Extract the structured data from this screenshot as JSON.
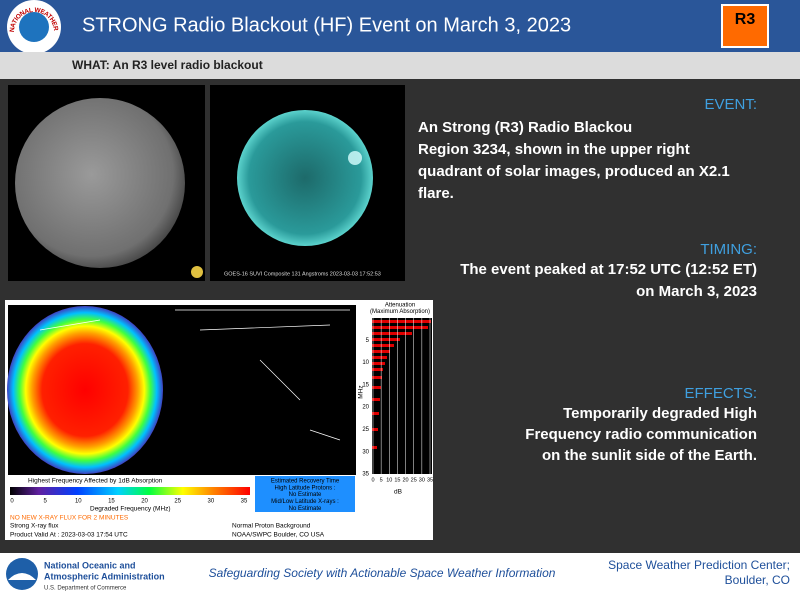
{
  "header": {
    "logo_text": "NATIONAL WEATHER SERVICE",
    "title": "STRONG Radio Blackout (HF) Event on March 3, 2023",
    "badge": "R3"
  },
  "what": "WHAT: An R3 level radio blackout",
  "images": {
    "suvi_caption": "GOES-16 SUVI Composite 131 Angstroms 2023-03-03 17:52:53"
  },
  "drap": {
    "legend_title": "Highest Frequency Affected by 1dB Absorption",
    "scale_ticks": [
      0,
      5,
      10,
      15,
      20,
      25,
      30,
      35
    ],
    "scale_label": "Degraded Frequency (MHz)",
    "recovery": [
      "Estimated Recovery Time",
      "High Latitude Protons :",
      "No Estimate",
      "Mid/Low Latitude X-rays :",
      "No Estimate"
    ],
    "warning": "NO NEW X-RAY FLUX FOR 2 MINUTES",
    "flux": "Strong X-ray flux",
    "valid": "Product Valid At : 2023-03-03 17:54 UTC",
    "proton": "Normal Proton Background",
    "source": "NOAA/SWPC Boulder, CO USA",
    "attenuation_title": [
      "Attenuation",
      "(Maximum Absorption)"
    ],
    "attenuation_y_label": "MHz",
    "attenuation_y_ticks": [
      5,
      10,
      15,
      20,
      25,
      30,
      35
    ],
    "attenuation_x_ticks": [
      0,
      5,
      10,
      15,
      20,
      25,
      30,
      35
    ],
    "attenuation_x_label": "dB"
  },
  "event": {
    "heading": "EVENT:",
    "lines": [
      "An Strong (R3) Radio Blackou",
      "Region 3234, shown in the upper right",
      "quadrant of solar images, produced an X2.1",
      "flare."
    ]
  },
  "timing": {
    "heading": "TIMING:",
    "lines": [
      "The event peaked at 17:52 UTC (12:52 ET)",
      "on March 3, 2023"
    ]
  },
  "effects": {
    "heading": "EFFECTS:",
    "lines": [
      "Temporarily degraded High",
      "Frequency radio communication",
      "on the sunlit side of the Earth."
    ]
  },
  "footer": {
    "noaa": [
      "National Oceanic and",
      "Atmospheric Administration",
      "U.S. Department of Commerce"
    ],
    "tagline": "Safeguarding Society with Actionable Space Weather Information",
    "center": [
      "Space Weather Prediction Center;",
      "Boulder, CO"
    ]
  }
}
